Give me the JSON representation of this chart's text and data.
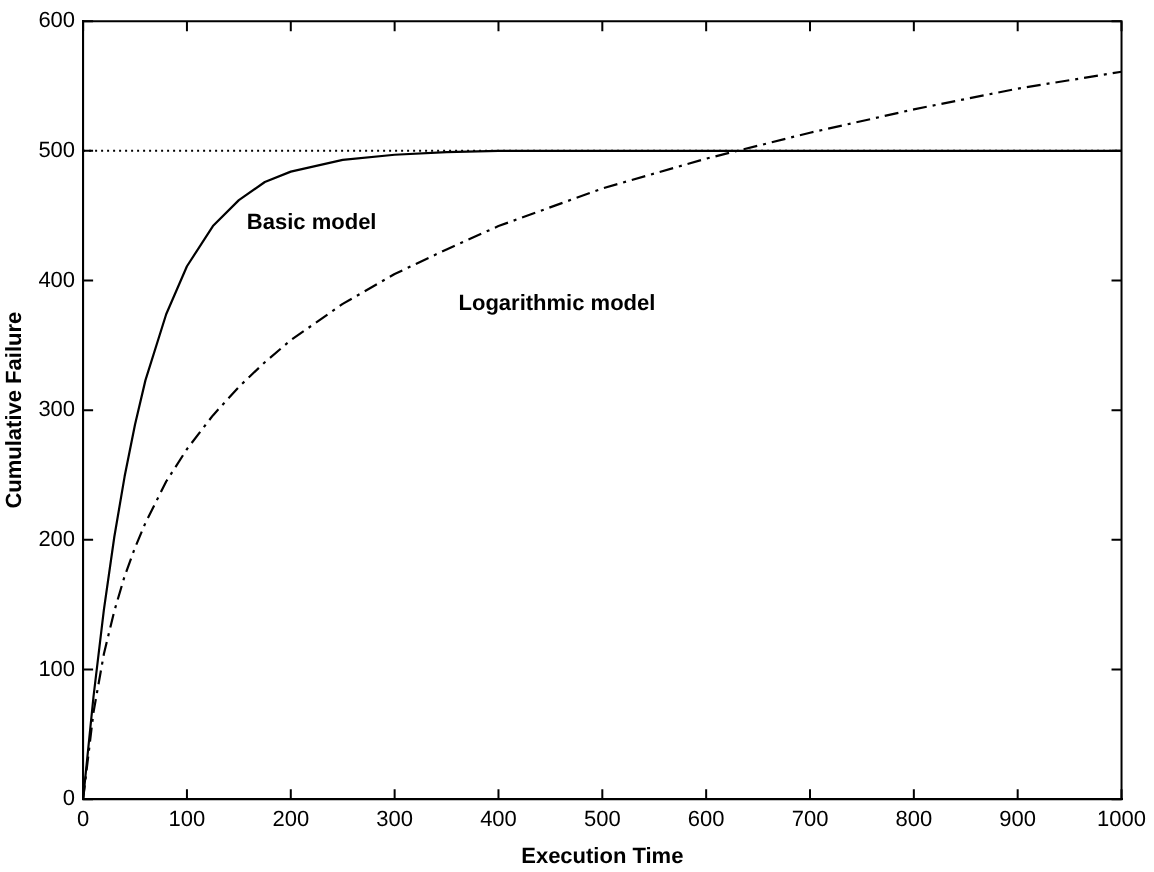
{
  "chart_data": {
    "type": "line",
    "xlabel": "Execution Time",
    "ylabel": "Cumulative Failure",
    "x": [
      0,
      10,
      20,
      30,
      40,
      50,
      60,
      80,
      100,
      125,
      150,
      175,
      200,
      250,
      300,
      350,
      400,
      500,
      600,
      700,
      800,
      900,
      1000
    ],
    "series": [
      {
        "name": "Basic model",
        "color": "#000000",
        "line_style": "solid",
        "values": [
          0,
          79,
          146,
          202,
          249,
          289,
          323,
          374,
          411,
          442,
          462,
          476,
          484,
          493,
          497,
          499,
          500,
          500,
          500,
          500,
          500,
          500,
          500
        ]
      },
      {
        "name": "Logarithmic model",
        "color": "#000000",
        "line_style": "dashed",
        "values": [
          0,
          67,
          112,
          145,
          172,
          194,
          213,
          245,
          270,
          296,
          318,
          337,
          354,
          382,
          405,
          424,
          442,
          471,
          494,
          514,
          532,
          548,
          561
        ]
      }
    ],
    "xlim": [
      0,
      1000
    ],
    "xticks": [
      0,
      100,
      200,
      300,
      400,
      500,
      600,
      700,
      800,
      900,
      1000
    ],
    "ylim": [
      0,
      600
    ],
    "yticks": [
      0,
      100,
      200,
      300,
      400,
      500,
      600
    ],
    "grid": false,
    "legend": false,
    "marker": "none",
    "ref_lines": [
      {
        "axis": "y",
        "value": 500,
        "color": "#000000",
        "line_style": "dotted"
      }
    ]
  }
}
